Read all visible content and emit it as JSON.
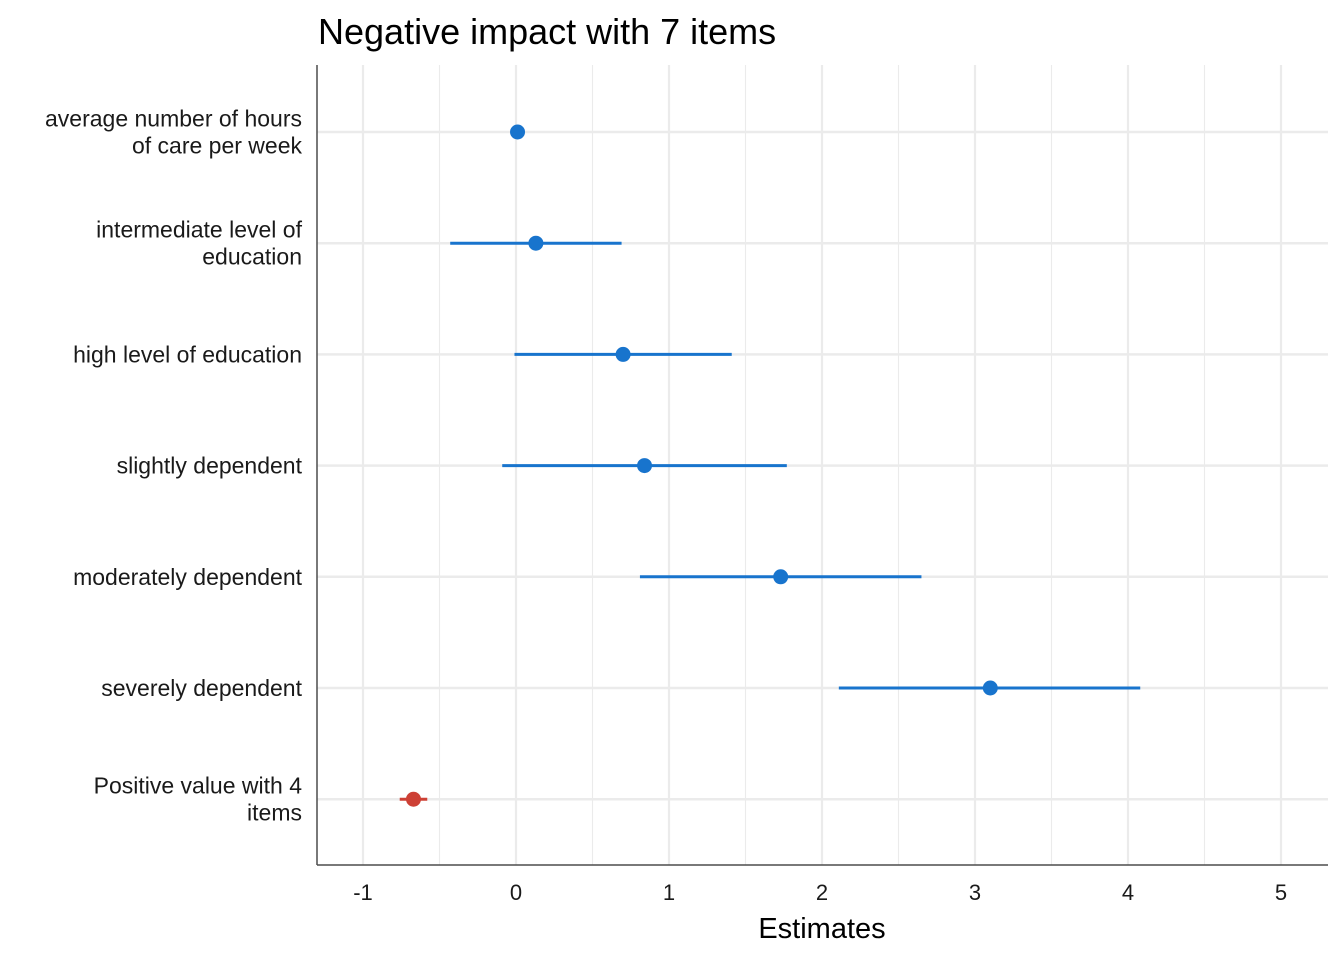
{
  "chart_data": {
    "type": "scatter",
    "title": "Negative impact with 7 items",
    "xlabel": "Estimates",
    "ylabel": "",
    "xlim": [
      -1.3,
      5.3
    ],
    "xticks": [
      "-1",
      "0",
      "1",
      "2",
      "3",
      "4",
      "5"
    ],
    "grid": true,
    "colors": {
      "positive": "#1874cd",
      "negative": "#cd4035",
      "grid": "#ebebeb",
      "axis": "#4d4d4d"
    },
    "terms": [
      {
        "label_lines": [
          "average number of hours",
          "of care per week"
        ],
        "estimate": 0.01,
        "ci": [
          0.0,
          0.02
        ],
        "sign": "positive"
      },
      {
        "label_lines": [
          "intermediate level of",
          "education"
        ],
        "estimate": 0.13,
        "ci": [
          -0.43,
          0.69
        ],
        "sign": "positive"
      },
      {
        "label_lines": [
          "high level of education"
        ],
        "estimate": 0.7,
        "ci": [
          -0.01,
          1.41
        ],
        "sign": "positive"
      },
      {
        "label_lines": [
          "slightly dependent"
        ],
        "estimate": 0.84,
        "ci": [
          -0.09,
          1.77
        ],
        "sign": "positive"
      },
      {
        "label_lines": [
          "moderately dependent"
        ],
        "estimate": 1.73,
        "ci": [
          0.81,
          2.65
        ],
        "sign": "positive"
      },
      {
        "label_lines": [
          "severely dependent"
        ],
        "estimate": 3.1,
        "ci": [
          2.11,
          4.08
        ],
        "sign": "positive"
      },
      {
        "label_lines": [
          "Positive value with 4",
          "items"
        ],
        "estimate": -0.67,
        "ci": [
          -0.76,
          -0.58
        ],
        "sign": "negative"
      }
    ]
  }
}
